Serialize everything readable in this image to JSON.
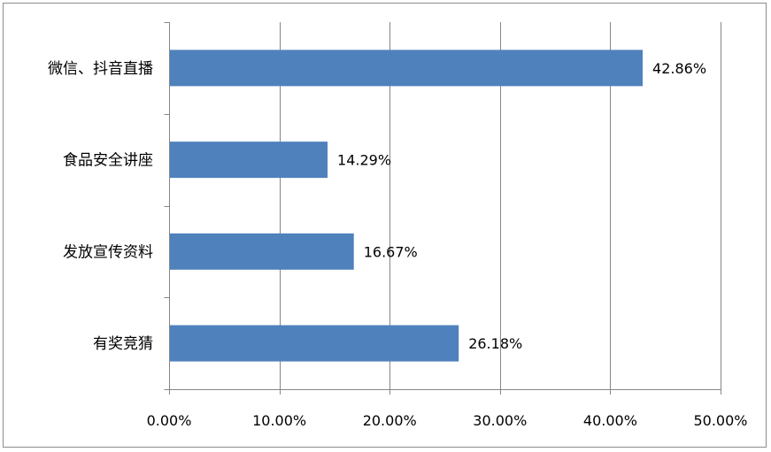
{
  "chart_data": {
    "type": "bar",
    "orientation": "horizontal",
    "categories": [
      "微信、抖音直播",
      "食品安全讲座",
      "发放宣传资料",
      "有奖竞猜"
    ],
    "values": [
      42.86,
      14.29,
      16.67,
      26.18
    ],
    "data_labels": [
      "42.86%",
      "14.29%",
      "16.67%",
      "26.18%"
    ],
    "xlim": [
      0,
      50
    ],
    "x_ticks": [
      0,
      10,
      20,
      30,
      40,
      50
    ],
    "x_tick_labels": [
      "0.00%",
      "10.00%",
      "20.00%",
      "30.00%",
      "40.00%",
      "50.00%"
    ],
    "grid": "vertical",
    "legend": "none",
    "bar_color": "#4f81bd"
  }
}
